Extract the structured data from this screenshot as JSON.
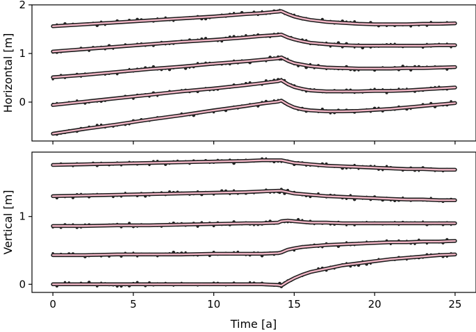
{
  "chart_data": [
    {
      "type": "line",
      "ylabel": "Horizontal [m]",
      "xlim": [
        -1.3,
        26.3
      ],
      "ylim": [
        -0.8,
        2.0
      ],
      "yticks": [
        0,
        1,
        2
      ],
      "grid": false,
      "x": [
        0,
        2,
        4,
        6,
        8,
        10,
        12,
        13,
        14,
        14.2,
        14.6,
        15,
        15.5,
        16,
        17,
        18,
        19,
        20,
        21,
        22,
        23,
        24,
        25
      ],
      "series": [
        {
          "values": [
            1.56,
            1.6,
            1.64,
            1.68,
            1.72,
            1.76,
            1.81,
            1.83,
            1.86,
            1.87,
            1.81,
            1.76,
            1.72,
            1.69,
            1.65,
            1.63,
            1.61,
            1.6,
            1.6,
            1.6,
            1.61,
            1.61,
            1.62
          ]
        },
        {
          "values": [
            1.04,
            1.09,
            1.14,
            1.19,
            1.24,
            1.28,
            1.33,
            1.36,
            1.38,
            1.39,
            1.33,
            1.29,
            1.25,
            1.22,
            1.19,
            1.17,
            1.16,
            1.16,
            1.16,
            1.16,
            1.16,
            1.17,
            1.17
          ]
        },
        {
          "values": [
            0.51,
            0.56,
            0.62,
            0.68,
            0.73,
            0.79,
            0.84,
            0.87,
            0.9,
            0.92,
            0.85,
            0.8,
            0.77,
            0.74,
            0.71,
            0.7,
            0.69,
            0.69,
            0.69,
            0.7,
            0.7,
            0.71,
            0.72
          ]
        },
        {
          "values": [
            -0.06,
            0.01,
            0.08,
            0.15,
            0.22,
            0.28,
            0.35,
            0.39,
            0.43,
            0.45,
            0.37,
            0.31,
            0.27,
            0.24,
            0.22,
            0.22,
            0.22,
            0.23,
            0.23,
            0.24,
            0.26,
            0.28,
            0.3
          ]
        },
        {
          "values": [
            -0.65,
            -0.55,
            -0.46,
            -0.36,
            -0.27,
            -0.17,
            -0.08,
            -0.03,
            0.01,
            0.03,
            -0.05,
            -0.11,
            -0.15,
            -0.17,
            -0.19,
            -0.19,
            -0.18,
            -0.16,
            -0.14,
            -0.11,
            -0.08,
            -0.05,
            -0.02
          ]
        }
      ]
    },
    {
      "type": "line",
      "xlabel": "Time [a]",
      "ylabel": "Vertical [m]",
      "xlim": [
        -1.3,
        26.3
      ],
      "ylim": [
        -0.12,
        1.95
      ],
      "xticks": [
        0,
        5,
        10,
        15,
        20,
        25
      ],
      "yticks": [
        0,
        1
      ],
      "grid": false,
      "x": [
        0,
        2,
        4,
        6,
        8,
        10,
        12,
        13,
        14,
        14.2,
        14.6,
        15,
        15.5,
        16,
        17,
        18,
        19,
        20,
        21,
        22,
        23,
        24,
        25
      ],
      "series": [
        {
          "values": [
            1.76,
            1.77,
            1.78,
            1.79,
            1.8,
            1.81,
            1.82,
            1.83,
            1.83,
            1.83,
            1.81,
            1.79,
            1.78,
            1.77,
            1.75,
            1.74,
            1.73,
            1.72,
            1.71,
            1.7,
            1.7,
            1.69,
            1.69
          ]
        },
        {
          "values": [
            1.3,
            1.31,
            1.32,
            1.33,
            1.34,
            1.35,
            1.36,
            1.37,
            1.38,
            1.38,
            1.36,
            1.34,
            1.33,
            1.32,
            1.3,
            1.29,
            1.28,
            1.27,
            1.26,
            1.25,
            1.25,
            1.24,
            1.24
          ]
        },
        {
          "values": [
            0.86,
            0.86,
            0.87,
            0.87,
            0.88,
            0.89,
            0.9,
            0.9,
            0.91,
            0.93,
            0.94,
            0.93,
            0.92,
            0.91,
            0.91,
            0.9,
            0.9,
            0.9,
            0.9,
            0.9,
            0.9,
            0.9,
            0.9
          ]
        },
        {
          "values": [
            0.43,
            0.43,
            0.44,
            0.44,
            0.44,
            0.45,
            0.45,
            0.45,
            0.46,
            0.47,
            0.51,
            0.53,
            0.55,
            0.56,
            0.58,
            0.59,
            0.6,
            0.61,
            0.62,
            0.62,
            0.63,
            0.63,
            0.64
          ]
        },
        {
          "values": [
            0.0,
            0.0,
            0.0,
            0.0,
            0.0,
            0.0,
            0.0,
            0.0,
            -0.01,
            -0.02,
            0.04,
            0.09,
            0.14,
            0.18,
            0.23,
            0.28,
            0.31,
            0.34,
            0.37,
            0.39,
            0.41,
            0.43,
            0.44
          ]
        }
      ]
    }
  ]
}
